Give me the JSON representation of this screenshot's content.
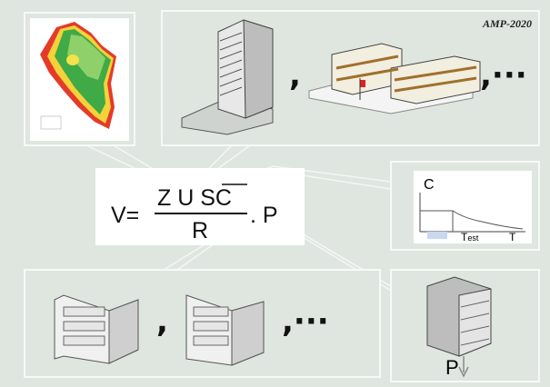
{
  "label": "AMP-2020",
  "formula": {
    "lhs": "V=",
    "numerator": "Z U SC",
    "denominator": "R",
    "tail": ". P"
  },
  "spectrum": {
    "y_label": "C",
    "x_label": "T",
    "marker_label": "T",
    "marker_subscript": "est"
  },
  "load_label": "P",
  "separators": {
    "top_first": ",",
    "top_more": ",···",
    "bottom_first": ",",
    "bottom_more": ",···"
  }
}
